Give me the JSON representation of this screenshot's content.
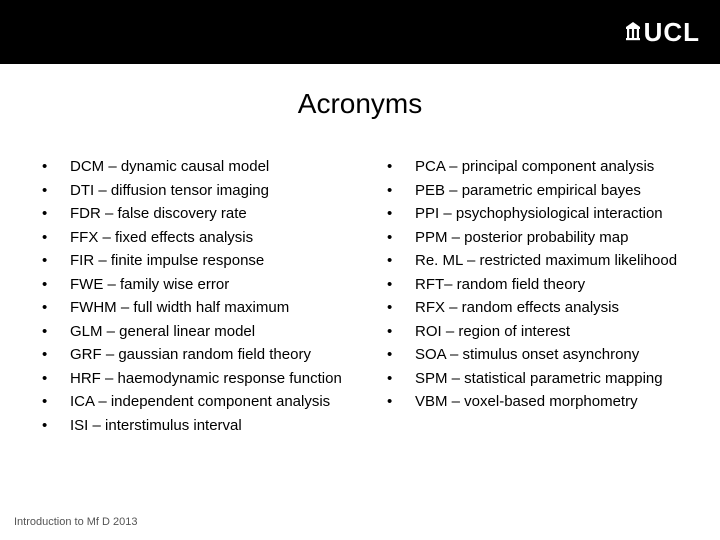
{
  "header": {
    "logo_text": "UCL"
  },
  "title": "Acronyms",
  "columns": {
    "left": [
      "DCM – dynamic causal model",
      "DTI – diffusion tensor imaging",
      "FDR – false discovery rate",
      "FFX – fixed effects analysis",
      "FIR – finite impulse response",
      "FWE – family wise error",
      "FWHM – full width half maximum",
      "GLM – general linear model",
      "GRF – gaussian random field theory",
      "HRF – haemodynamic response function",
      "ICA – independent component analysis",
      "ISI – interstimulus interval"
    ],
    "right": [
      "PCA – principal component analysis",
      "PEB – parametric empirical bayes",
      "PPI – psychophysiological interaction",
      "PPM – posterior probability map",
      "Re. ML – restricted maximum likelihood",
      "RFT– random field theory",
      "RFX – random effects analysis",
      "ROI – region of interest",
      "SOA – stimulus onset asynchrony",
      "SPM – statistical parametric mapping",
      "VBM – voxel-based morphometry"
    ]
  },
  "footer": "Introduction to Mf D 2013",
  "style": {
    "header_bg": "#000000",
    "body_bg": "#ffffff",
    "title_fontsize": 28,
    "item_fontsize": 15,
    "footer_fontsize": 11,
    "bullet_char": "•"
  }
}
